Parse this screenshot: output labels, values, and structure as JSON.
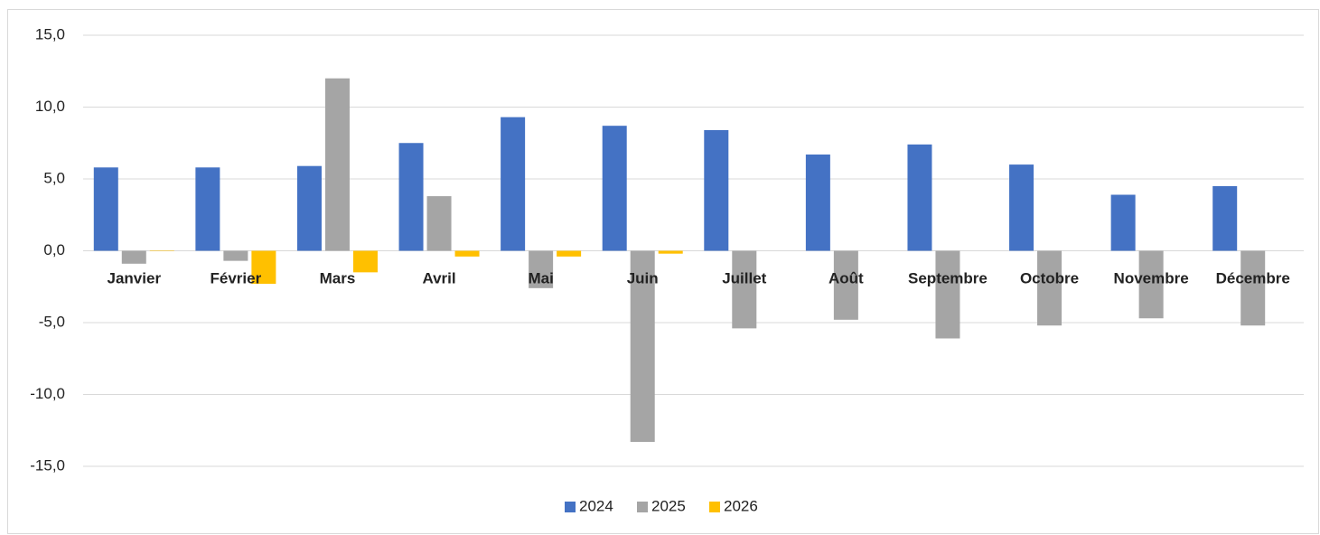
{
  "chart_data": {
    "type": "bar",
    "categories": [
      "Janvier",
      "Février",
      "Mars",
      "Avril",
      "Mai",
      "Juin",
      "Juillet",
      "Août",
      "Septembre",
      "Octobre",
      "Novembre",
      "Décembre"
    ],
    "series": [
      {
        "name": "2024",
        "color": "#4472c4",
        "values": [
          5.8,
          5.8,
          5.9,
          7.5,
          9.3,
          8.7,
          8.4,
          6.7,
          7.4,
          6.0,
          3.9,
          4.5
        ]
      },
      {
        "name": "2025",
        "color": "#a5a5a5",
        "values": [
          -0.9,
          -0.7,
          12.0,
          3.8,
          -2.6,
          -13.3,
          -5.4,
          -4.8,
          -6.1,
          -5.2,
          -4.7,
          -5.2
        ]
      },
      {
        "name": "2026",
        "color": "#ffc000",
        "values": [
          0,
          -2.3,
          -1.5,
          -0.4,
          -0.4,
          -0.2,
          null,
          null,
          null,
          null,
          null,
          null
        ]
      }
    ],
    "ylim": [
      -15,
      15
    ],
    "yticks": [
      {
        "value": -15,
        "label": "-15,0"
      },
      {
        "value": -10,
        "label": "-10,0"
      },
      {
        "value": -5,
        "label": "-5,0"
      },
      {
        "value": 0,
        "label": "0,0"
      },
      {
        "value": 5,
        "label": "5,0"
      },
      {
        "value": 10,
        "label": "10,0"
      },
      {
        "value": 15,
        "label": "15,0"
      }
    ],
    "grid": true,
    "legend": "bottom"
  }
}
